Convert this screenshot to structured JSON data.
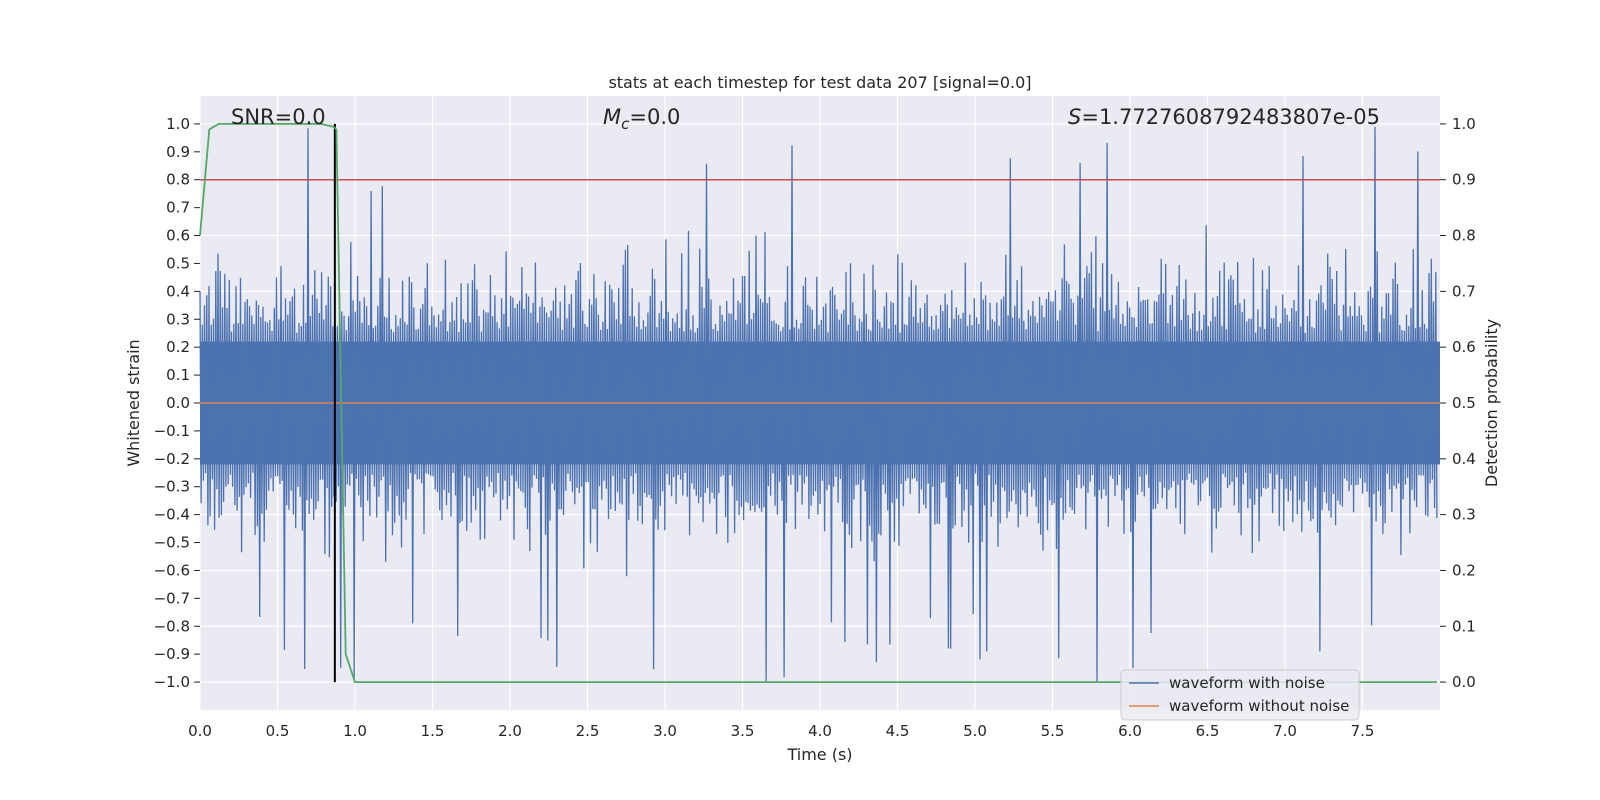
{
  "chart_data": {
    "type": "line",
    "title": "stats at each timestep for test data 207 [signal=0.0]",
    "xlabel": "Time (s)",
    "ylabel": "Whitened strain",
    "ylabel_right": "Detection probability",
    "xlim": [
      0.0,
      8.0
    ],
    "ylim": [
      -1.1,
      1.1
    ],
    "ylim_right": [
      -0.05,
      1.05
    ],
    "xticks": [
      "0.0",
      "0.5",
      "1.0",
      "1.5",
      "2.0",
      "2.5",
      "3.0",
      "3.5",
      "4.0",
      "4.5",
      "5.0",
      "5.5",
      "6.0",
      "6.5",
      "7.0",
      "7.5"
    ],
    "yticks": [
      "1.0",
      "0.9",
      "0.8",
      "0.7",
      "0.6",
      "0.5",
      "0.4",
      "0.3",
      "0.2",
      "0.1",
      "0.0",
      "−0.1",
      "−0.2",
      "−0.3",
      "−0.4",
      "−0.5",
      "−0.6",
      "−0.7",
      "−0.8",
      "−0.9",
      "−1.0"
    ],
    "yticks_right": [
      "1.0",
      "0.9",
      "0.8",
      "0.7",
      "0.6",
      "0.5",
      "0.4",
      "0.3",
      "0.2",
      "0.1",
      "0.0"
    ],
    "annotations": {
      "snr": "SNR=0.0",
      "mc": "=0.0",
      "mc_symbol": "M",
      "mc_sub": "c",
      "s": "=1.7727608792483807e-05",
      "s_symbol": "S"
    },
    "series": [
      {
        "name": "waveform with noise",
        "color": "#4c72b0",
        "description": "dense noise approx. within ±0.5, spikes to about ±1.0",
        "sample_count": 1100,
        "seed": 207
      },
      {
        "name": "waveform without noise",
        "color": "#dd8452",
        "values_constant": 0.0
      },
      {
        "name": "detection probability",
        "color": "#55a868",
        "x": [
          0.0,
          0.06,
          0.12,
          0.2,
          0.4,
          0.6,
          0.78,
          0.86,
          0.88,
          0.94,
          1.0,
          1.1,
          1.5,
          3.0,
          6.0,
          7.98
        ],
        "y": [
          0.8,
          0.99,
          1.0,
          1.0,
          1.0,
          1.0,
          1.0,
          0.995,
          0.99,
          0.05,
          0.0,
          0.0,
          0.0,
          0.0,
          0.0,
          0.0
        ]
      }
    ],
    "threshold": {
      "value": 0.8,
      "axis": "left",
      "color": "#c44e52"
    },
    "marker_time": {
      "x": 0.87,
      "ymin": -1.0,
      "ymax": 1.0,
      "color": "#000000"
    },
    "legend": {
      "position": "lower right",
      "entries": [
        "waveform with noise",
        "waveform without noise"
      ]
    }
  }
}
